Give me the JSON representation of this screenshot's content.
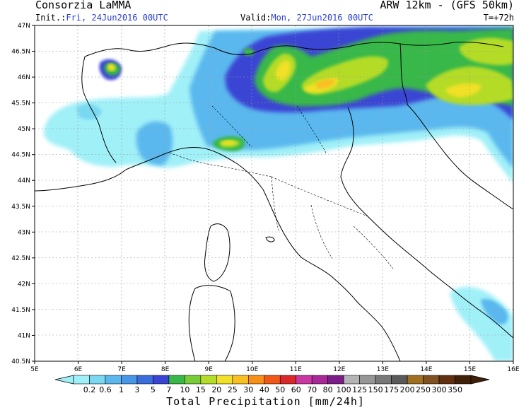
{
  "header": {
    "org": "Consorzia LaMMA",
    "model": "ARW 12km - (GFS 50km)",
    "init_label": "Init.:",
    "init_value": "Fri, 24Jun2016 00UTC",
    "valid_label": "Valid:",
    "valid_value": "Mon, 27Jun2016 00UTC",
    "lead": "T=+72h"
  },
  "axes": {
    "lat_labels": [
      "47N",
      "46.5N",
      "46N",
      "45.5N",
      "45N",
      "44.5N",
      "44N",
      "43.5N",
      "43N",
      "42.5N",
      "42N",
      "41.5N",
      "41N",
      "40.5N"
    ],
    "lon_labels": [
      "5E",
      "6E",
      "7E",
      "8E",
      "9E",
      "10E",
      "11E",
      "12E",
      "13E",
      "14E",
      "15E",
      "16E"
    ]
  },
  "colorbar": {
    "labels": [
      "0.2",
      "0.6",
      "1",
      "3",
      "5",
      "7",
      "10",
      "15",
      "20",
      "25",
      "30",
      "40",
      "50",
      "60",
      "70",
      "80",
      "100",
      "125",
      "150",
      "175",
      "200",
      "250",
      "300",
      "350"
    ],
    "colors": [
      "#a0f0f8",
      "#7ad8f0",
      "#5ab8ee",
      "#4896e8",
      "#3a6cdc",
      "#3a44d4",
      "#38b848",
      "#78cc38",
      "#b4dc28",
      "#f0e028",
      "#f8c020",
      "#f89018",
      "#f05818",
      "#d82828",
      "#c838a0",
      "#a82898",
      "#7c1c88",
      "#b4b4b4",
      "#969696",
      "#787878",
      "#5a5a5a",
      "#a07020",
      "#805020",
      "#603010",
      "#402008"
    ],
    "title": "Total Precipitation [mm/24h]"
  },
  "map": {
    "colors": {
      "land_bg": "#ffffff",
      "coast": "#000000",
      "border": "#000000",
      "grid": "#999999"
    }
  }
}
